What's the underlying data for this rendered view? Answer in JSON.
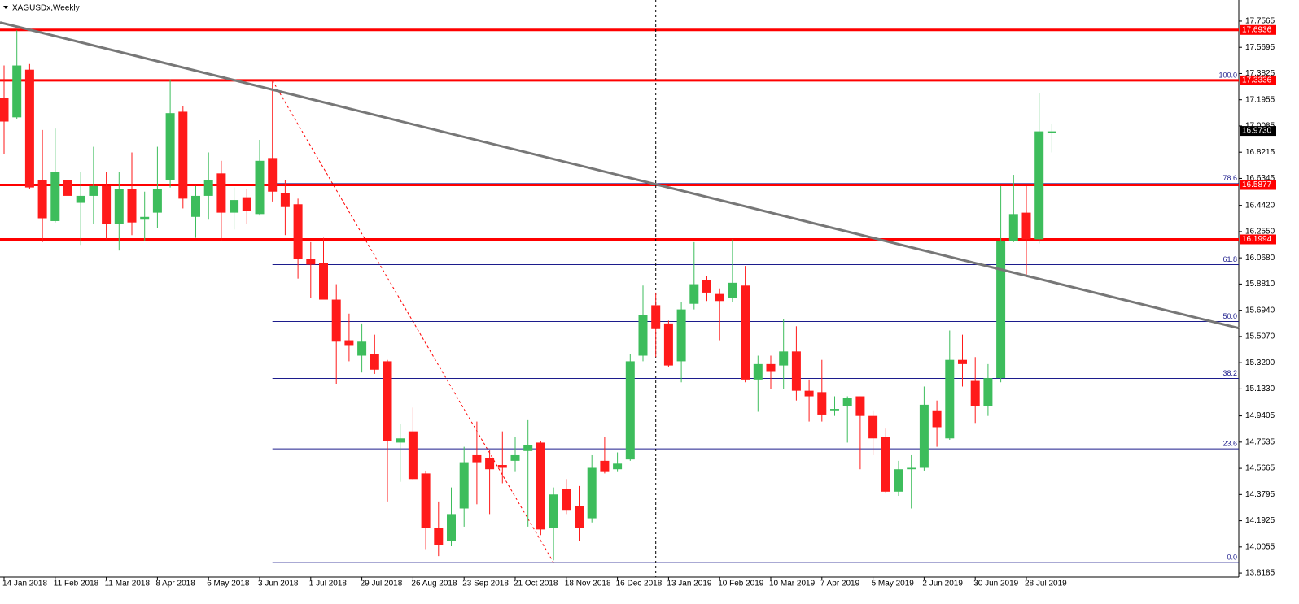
{
  "chart_data": {
    "type": "candlestick",
    "title": "XAGUSDx,Weekly",
    "categories": [
      "14 Jan 2018",
      null,
      null,
      null,
      "11 Feb 2018",
      null,
      null,
      null,
      "11 Mar 2018",
      null,
      null,
      null,
      "8 Apr 2018",
      null,
      null,
      null,
      "6 May 2018",
      null,
      null,
      null,
      "3 Jun 2018",
      null,
      null,
      null,
      "1 Jul 2018",
      null,
      null,
      null,
      "29 Jul 2018",
      null,
      null,
      null,
      "26 Aug 2018",
      null,
      null,
      null,
      "23 Sep 2018",
      null,
      null,
      null,
      "21 Oct 2018",
      null,
      null,
      null,
      "18 Nov 2018",
      null,
      null,
      null,
      "16 Dec 2018",
      null,
      null,
      null,
      "13 Jan 2019",
      null,
      null,
      null,
      "10 Feb 2019",
      null,
      null,
      null,
      "10 Mar 2019",
      null,
      null,
      null,
      "7 Apr 2019",
      null,
      null,
      null,
      "5 May 2019",
      null,
      null,
      null,
      "2 Jun 2019",
      null,
      null,
      null,
      "30 Jun 2019",
      null,
      null,
      null,
      "28 Jul 2019",
      null,
      null
    ],
    "open": [
      17.21,
      17.07,
      17.41,
      16.62,
      16.33,
      16.62,
      16.46,
      16.51,
      16.58,
      16.31,
      16.56,
      16.34,
      16.39,
      16.62,
      17.11,
      16.36,
      16.51,
      16.67,
      16.39,
      16.5,
      16.38,
      16.78,
      16.53,
      16.45,
      16.06,
      16.03,
      15.77,
      15.48,
      15.37,
      15.38,
      15.33,
      14.75,
      14.83,
      14.53,
      14.14,
      14.05,
      14.28,
      14.66,
      14.64,
      14.59,
      14.62,
      14.69,
      14.75,
      14.14,
      14.42,
      14.3,
      14.21,
      14.62,
      14.56,
      14.63,
      15.37,
      15.73,
      15.6,
      15.33,
      15.74,
      15.91,
      15.81,
      15.78,
      15.87,
      15.2,
      15.31,
      15.3,
      15.4,
      15.12,
      15.11,
      14.98,
      15.01,
      15.08,
      14.94,
      14.79,
      14.4,
      14.56,
      14.57,
      14.98,
      14.78,
      15.34,
      15.19,
      15.01,
      15.21,
      16.19,
      16.39,
      16.2,
      16.96
    ],
    "high": [
      17.44,
      17.69,
      17.45,
      16.98,
      16.99,
      16.78,
      16.68,
      16.86,
      16.68,
      16.68,
      16.82,
      16.54,
      16.86,
      17.34,
      17.15,
      16.58,
      16.82,
      16.76,
      16.57,
      16.56,
      16.91,
      17.33,
      16.62,
      16.49,
      16.18,
      16.21,
      15.88,
      15.67,
      15.6,
      15.52,
      15.34,
      14.88,
      15.0,
      14.55,
      14.33,
      14.43,
      14.72,
      14.9,
      14.7,
      14.83,
      14.79,
      14.91,
      14.76,
      14.43,
      14.49,
      14.44,
      14.66,
      14.79,
      14.68,
      15.38,
      15.87,
      15.82,
      15.62,
      15.75,
      16.18,
      15.94,
      15.85,
      16.2,
      16.01,
      15.37,
      15.37,
      15.63,
      15.58,
      15.2,
      15.34,
      15.08,
      15.08,
      15.08,
      14.98,
      14.85,
      14.62,
      14.66,
      15.15,
      15.05,
      15.55,
      15.52,
      15.36,
      15.31,
      16.58,
      16.66,
      16.58,
      17.24,
      17.02
    ],
    "low": [
      16.81,
      17.06,
      16.56,
      16.18,
      16.32,
      16.31,
      16.16,
      16.31,
      16.2,
      16.12,
      16.23,
      16.19,
      16.28,
      16.57,
      16.42,
      16.21,
      16.34,
      16.19,
      16.27,
      16.31,
      16.37,
      16.47,
      16.23,
      15.92,
      15.78,
      15.77,
      15.17,
      15.33,
      15.25,
      15.24,
      14.33,
      14.47,
      14.48,
      13.99,
      13.94,
      14.01,
      14.15,
      14.31,
      14.24,
      14.46,
      14.54,
      14.15,
      14.09,
      13.91,
      14.24,
      14.05,
      14.18,
      14.53,
      14.54,
      14.62,
      15.33,
      15.36,
      15.29,
      15.18,
      15.7,
      15.76,
      15.48,
      15.75,
      15.18,
      14.97,
      15.13,
      15.13,
      15.05,
      14.9,
      14.9,
      14.94,
      14.75,
      14.56,
      14.66,
      14.39,
      14.37,
      14.28,
      14.55,
      14.72,
      14.77,
      15.15,
      14.89,
      14.94,
      15.18,
      16.18,
      15.94,
      16.17,
      16.82
    ],
    "close": [
      17.04,
      17.44,
      16.57,
      16.35,
      16.68,
      16.51,
      16.51,
      16.58,
      16.31,
      16.56,
      16.32,
      16.36,
      16.56,
      17.1,
      16.49,
      16.51,
      16.62,
      16.39,
      16.48,
      16.4,
      16.76,
      16.54,
      16.43,
      16.06,
      16.02,
      15.77,
      15.47,
      15.44,
      15.47,
      15.27,
      14.76,
      14.78,
      14.49,
      14.14,
      14.02,
      14.24,
      14.61,
      14.61,
      14.56,
      14.57,
      14.66,
      14.73,
      14.13,
      14.38,
      14.27,
      14.14,
      14.57,
      14.54,
      14.6,
      15.33,
      15.66,
      15.56,
      15.3,
      15.7,
      15.88,
      15.82,
      15.76,
      15.89,
      15.2,
      15.31,
      15.26,
      15.4,
      15.12,
      15.08,
      14.95,
      14.99,
      15.07,
      14.94,
      14.78,
      14.4,
      14.56,
      14.57,
      15.02,
      14.86,
      15.34,
      15.31,
      15.01,
      15.21,
      16.19,
      16.38,
      16.2,
      16.97,
      16.97
    ],
    "up_color": "#3dbd5c",
    "down_color": "#ff1a1a",
    "ylim": [
      13.79,
      17.907
    ],
    "yticks": [
      17.7565,
      17.5695,
      17.3825,
      17.1955,
      17.0085,
      16.8215,
      16.6345,
      {
        "value": 16.442,
        "label": "16.4420"
      },
      {
        "value": 16.255,
        "label": "16.2550"
      },
      {
        "value": 16.068,
        "label": "16.0680"
      },
      {
        "value": 15.881,
        "label": "15.8810"
      },
      {
        "value": 15.694,
        "label": "15.6940"
      },
      {
        "value": 15.507,
        "label": "15.5070"
      },
      {
        "value": 15.32,
        "label": "15.3200"
      },
      {
        "value": 15.133,
        "label": "15.1330"
      },
      14.9405,
      14.7535,
      14.5665,
      14.3795,
      14.1925,
      14.0055,
      13.8185
    ],
    "levels": [
      17.6936,
      17.3336,
      16.5877,
      16.1994
    ],
    "level_color": "#ff0000",
    "current_price": {
      "value": 16.973,
      "label": "16.9730"
    },
    "fibonacci": {
      "start_index": 21,
      "high": 17.3336,
      "end_index": 43,
      "low": 13.894,
      "color": "#1c1c8c",
      "levels": [
        {
          "value": 100,
          "label": "100.0"
        },
        78.6,
        61.8,
        {
          "value": 50,
          "label": "50.0"
        },
        38.2,
        23.6,
        {
          "value": 0,
          "label": "0.0"
        }
      ]
    },
    "trendline": {
      "start": [
        0,
        17.74
      ],
      "end": [
        80,
        15.94
      ],
      "color": "#777777"
    },
    "vline_index": 51
  }
}
